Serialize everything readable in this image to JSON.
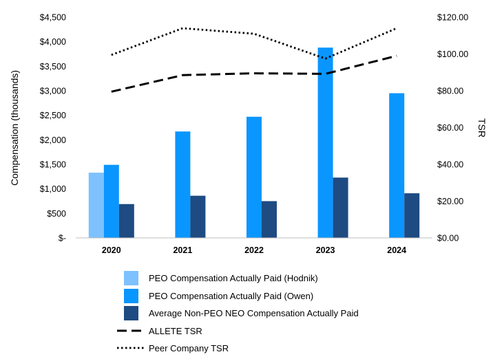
{
  "chart_data": {
    "type": "bar",
    "categories": [
      "2020",
      "2021",
      "2022",
      "2023",
      "2024"
    ],
    "ylabel": "Compensation (thousands)",
    "y2label": "TSR",
    "ylim": [
      0,
      4500
    ],
    "y2lim": [
      0,
      120
    ],
    "yticks": [
      {
        "value": 0,
        "label": "$-"
      },
      {
        "value": 500,
        "label": "$500"
      },
      {
        "value": 1000,
        "label": "$1,000"
      },
      {
        "value": 1500,
        "label": "$1,500"
      },
      {
        "value": 2000,
        "label": "$2,000"
      },
      {
        "value": 2500,
        "label": "$2,500"
      },
      {
        "value": 3000,
        "label": "$3,000"
      },
      {
        "value": 3500,
        "label": "$3,500"
      },
      {
        "value": 4000,
        "label": "$4,000"
      },
      {
        "value": 4500,
        "label": "$4,500"
      }
    ],
    "y2ticks": [
      {
        "value": 0,
        "label": "$0.00"
      },
      {
        "value": 20,
        "label": "$20.00"
      },
      {
        "value": 40,
        "label": "$40.00"
      },
      {
        "value": 60,
        "label": "$60.00"
      },
      {
        "value": 80,
        "label": "$80.00"
      },
      {
        "value": 100,
        "label": "$100.00"
      },
      {
        "value": 120,
        "label": "$120.00"
      }
    ],
    "grid": false,
    "legend_position": "bottom",
    "series": [
      {
        "name": "PEO Compensation Actually Paid (Hodnik)",
        "kind": "bar",
        "axis": "left",
        "color": "#7DC1FF",
        "values": [
          1330,
          null,
          null,
          null,
          null
        ]
      },
      {
        "name": "PEO Compensation Actually Paid (Owen)",
        "kind": "bar",
        "axis": "left",
        "color": "#0A96FF",
        "values": [
          1490,
          2170,
          2470,
          3880,
          2950
        ]
      },
      {
        "name": "Average Non-PEO NEO Compensation Actually Paid",
        "kind": "bar",
        "axis": "left",
        "color": "#1E4B82",
        "values": [
          690,
          860,
          750,
          1230,
          910
        ]
      },
      {
        "name": "ALLETE TSR",
        "kind": "line",
        "axis": "right",
        "color": "#000000",
        "dash": "dashed",
        "values": [
          79.5,
          88.5,
          89.5,
          89.2,
          99
        ]
      },
      {
        "name": "Peer Company TSR",
        "kind": "line",
        "axis": "right",
        "color": "#000000",
        "dash": "dotted",
        "values": [
          99.5,
          114,
          111,
          97.5,
          114
        ]
      }
    ]
  }
}
